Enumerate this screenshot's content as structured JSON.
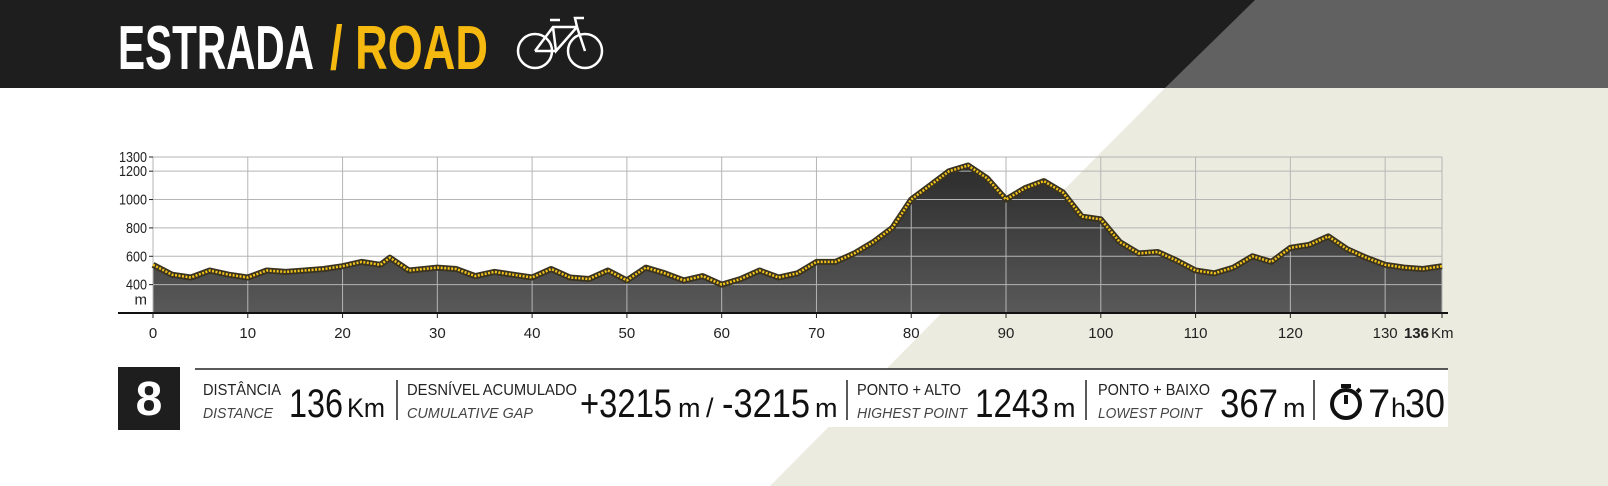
{
  "header": {
    "title_main": "ESTRADA",
    "title_accent": "/ ROAD"
  },
  "chart_data": {
    "type": "area",
    "x": [
      0,
      2,
      4,
      6,
      8,
      10,
      12,
      14,
      16,
      18,
      20,
      22,
      24,
      25,
      27,
      30,
      32,
      34,
      36,
      38,
      40,
      42,
      44,
      46,
      48,
      50,
      52,
      54,
      56,
      58,
      60,
      62,
      64,
      66,
      68,
      70,
      72,
      74,
      76,
      78,
      80,
      82,
      84,
      86,
      88,
      90,
      92,
      94,
      96,
      98,
      100,
      102,
      104,
      106,
      108,
      110,
      112,
      114,
      116,
      118,
      120,
      122,
      124,
      126,
      128,
      130,
      132,
      134,
      136
    ],
    "series": [
      {
        "color": "#f2c318",
        "values": [
          540,
          470,
          450,
          500,
          470,
          450,
          500,
          490,
          500,
          510,
          530,
          560,
          540,
          590,
          500,
          520,
          510,
          460,
          490,
          470,
          450,
          510,
          450,
          440,
          500,
          430,
          520,
          480,
          430,
          460,
          400,
          440,
          500,
          450,
          480,
          560,
          560,
          620,
          700,
          800,
          1000,
          1100,
          1200,
          1240,
          1150,
          1000,
          1080,
          1130,
          1050,
          880,
          860,
          700,
          620,
          630,
          570,
          500,
          480,
          520,
          600,
          560,
          660,
          680,
          740,
          650,
          590,
          540,
          520,
          510,
          530
        ]
      }
    ],
    "xlim": [
      0,
      136
    ],
    "xticks": [
      0,
      10,
      20,
      30,
      40,
      50,
      60,
      70,
      80,
      90,
      100,
      110,
      120,
      130,
      136
    ],
    "x_unit": "Km",
    "ylim": [
      200,
      1300
    ],
    "yticks": [
      400,
      600,
      800,
      1000,
      1200,
      1300
    ],
    "y_unit": "m",
    "grid": true
  },
  "stats": {
    "stage": "8",
    "distance_label": "DISTÂNCIA",
    "distance_sub": "DISTANCE",
    "distance": "136",
    "distance_unit": "Km",
    "gap_label": "DESNÍVEL ACUMULADO",
    "gap_sub": "CUMULATIVE GAP",
    "gap_up": "+3215",
    "gap_up_unit": "m",
    "gap_sep": "/",
    "gap_down": "-3215",
    "gap_down_unit": "m",
    "high_label": "PONTO + ALTO",
    "high_sub": "HIGHEST POINT",
    "high": "1243",
    "high_unit": "m",
    "low_label": "PONTO + BAIXO",
    "low_sub": "LOWEST POINT",
    "low": "367",
    "low_unit": "m",
    "time_hours": "7",
    "time_unit": "h",
    "time_minutes": "30"
  }
}
